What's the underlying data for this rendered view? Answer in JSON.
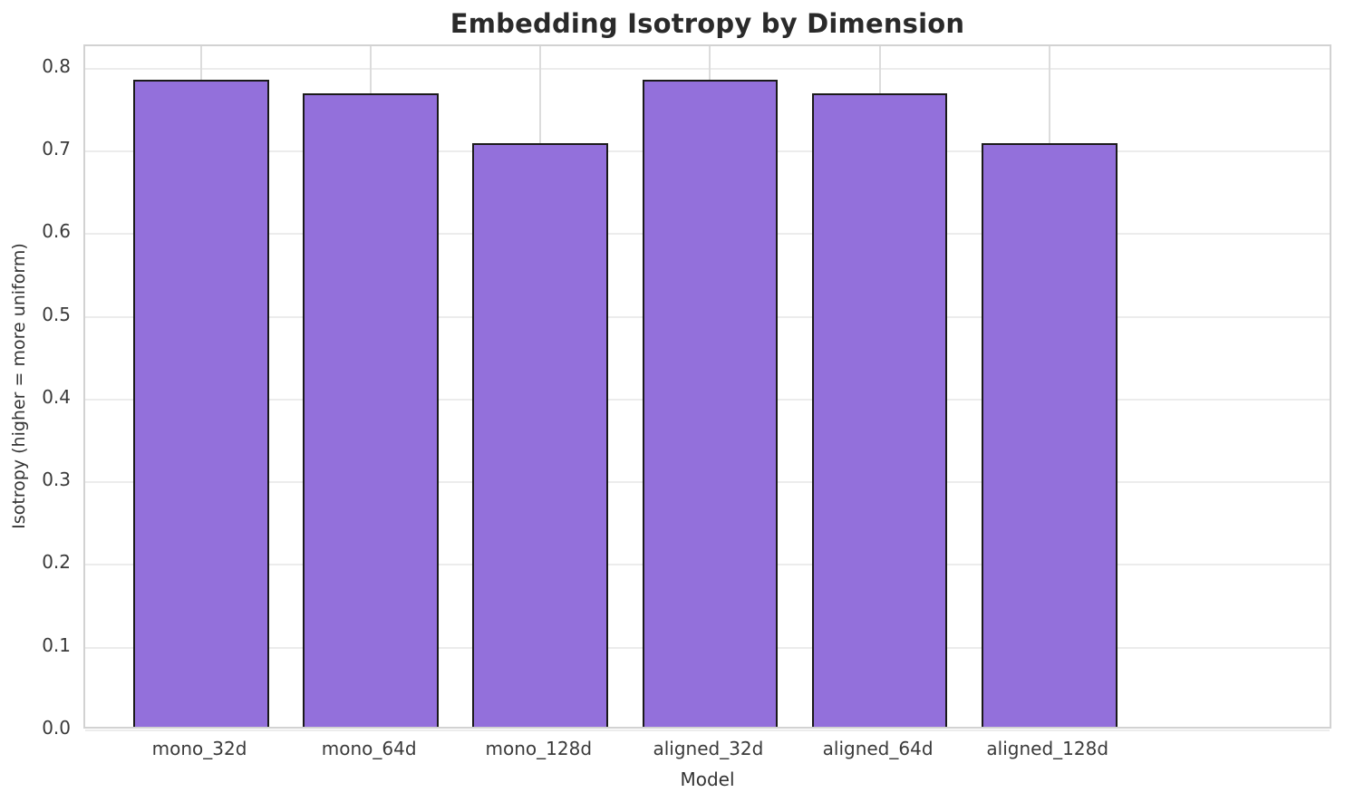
{
  "chart_data": {
    "type": "bar",
    "title": "Embedding Isotropy by Dimension",
    "xlabel": "Model",
    "ylabel": "Isotropy (higher = more uniform)",
    "categories": [
      "mono_32d",
      "mono_64d",
      "mono_128d",
      "aligned_32d",
      "aligned_64d",
      "aligned_128d"
    ],
    "values": [
      0.782,
      0.766,
      0.705,
      0.782,
      0.766,
      0.705
    ],
    "ylim": [
      0,
      0.827
    ],
    "ytick_labels": [
      "0.0",
      "0.1",
      "0.2",
      "0.3",
      "0.4",
      "0.5",
      "0.6",
      "0.7",
      "0.8"
    ],
    "grid": "on",
    "legend": "none",
    "colors": {
      "bar_fill": "#9370DB",
      "bar_edge": "#1a1a1a",
      "grid_line_h": "#ececec",
      "grid_line_v": "#dcdcdc",
      "spine": "#d2d2d2",
      "tick_text": "#3a3a3a",
      "axis_label_text": "#333333",
      "title_text": "#2a2a2a",
      "background": "#ffffff"
    }
  }
}
